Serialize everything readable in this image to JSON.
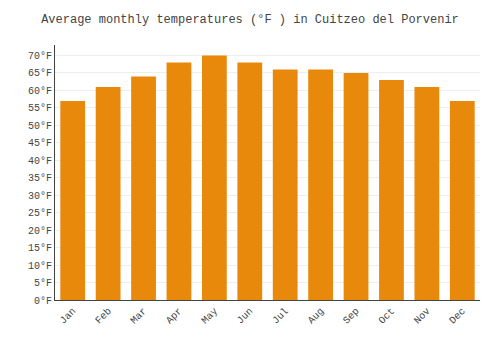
{
  "chart_data": {
    "type": "bar",
    "title": "Average monthly temperatures (°F ) in Cuitzeo del Porvenir",
    "categories": [
      "Jan",
      "Feb",
      "Mar",
      "Apr",
      "May",
      "Jun",
      "Jul",
      "Aug",
      "Sep",
      "Oct",
      "Nov",
      "Dec"
    ],
    "values": [
      57,
      61,
      64,
      68,
      70,
      68,
      66,
      66,
      65,
      63,
      61,
      57
    ],
    "color": "#E8890C",
    "ylim": [
      0,
      73
    ],
    "yticks": [
      {
        "value": 0,
        "label": "0°F"
      },
      {
        "value": 5,
        "label": "5°F"
      },
      {
        "value": 10,
        "label": "10°F"
      },
      {
        "value": 15,
        "label": "15°F"
      },
      {
        "value": 20,
        "label": "20°F"
      },
      {
        "value": 25,
        "label": "25°F"
      },
      {
        "value": 30,
        "label": "30°F"
      },
      {
        "value": 35,
        "label": "35°F"
      },
      {
        "value": 40,
        "label": "40°F"
      },
      {
        "value": 45,
        "label": "45°F"
      },
      {
        "value": 50,
        "label": "50°F"
      },
      {
        "value": 55,
        "label": "55°F"
      },
      {
        "value": 60,
        "label": "60°F"
      },
      {
        "value": 65,
        "label": "65°F"
      },
      {
        "value": 70,
        "label": "70°F"
      }
    ],
    "grid": true
  }
}
